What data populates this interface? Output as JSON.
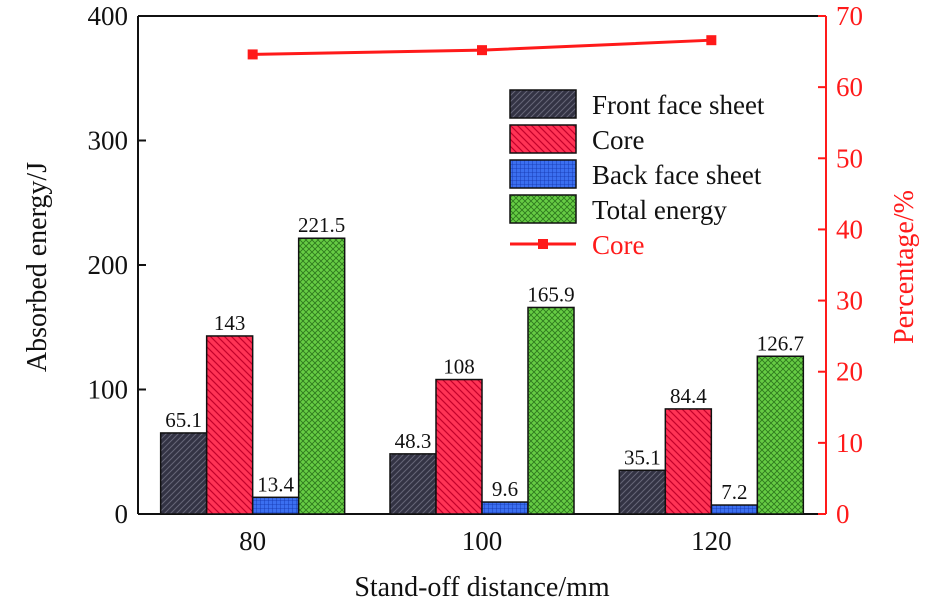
{
  "chart_data": {
    "type": "bar",
    "categories": [
      "80",
      "100",
      "120"
    ],
    "xlabel": "Stand-off distance/mm",
    "ylabel": "Absorbed energy/J",
    "y2label": "Percentage/%",
    "ylim": [
      0,
      400
    ],
    "y2lim": [
      0,
      70
    ],
    "yticks": [
      0,
      100,
      200,
      300,
      400
    ],
    "y2ticks": [
      0,
      10,
      20,
      30,
      40,
      50,
      60,
      70
    ],
    "legend_position": "upper-right",
    "series": [
      {
        "name": "Front face sheet",
        "values": [
          65.1,
          48.3,
          35.1
        ],
        "labels": [
          "65.1",
          "48.3",
          "35.1"
        ],
        "color": "#333344",
        "pattern": "diag-dark"
      },
      {
        "name": "Core",
        "values": [
          143,
          108,
          84.4
        ],
        "labels": [
          "143",
          "108",
          "84.4"
        ],
        "color": "#ff3355",
        "pattern": "diag-red"
      },
      {
        "name": "Back face sheet",
        "values": [
          13.4,
          9.6,
          7.2
        ],
        "labels": [
          "13.4",
          "9.6",
          "7.2"
        ],
        "color": "#3366ee",
        "pattern": "grid-blue"
      },
      {
        "name": "Total energy",
        "values": [
          221.5,
          165.9,
          126.7
        ],
        "labels": [
          "221.5",
          "165.9",
          "126.7"
        ],
        "color": "#66cc44",
        "pattern": "cross-green"
      }
    ],
    "line_series": {
      "name": "Core",
      "axis": "right",
      "values": [
        64.6,
        65.2,
        66.6
      ],
      "color": "#ff1a1a",
      "marker": "square"
    }
  }
}
